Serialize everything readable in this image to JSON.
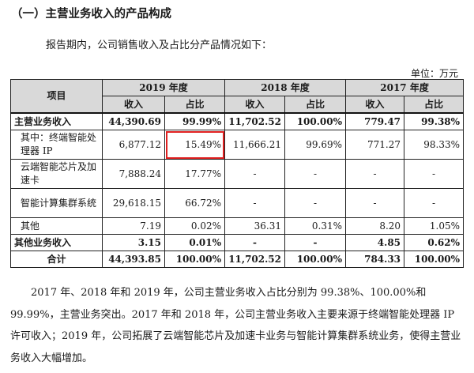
{
  "heading": "（一）主营业务收入的产品构成",
  "intro": "报告期内，公司销售收入及占比分产品情况如下：",
  "unit": "单位：万元",
  "table": {
    "col_item": "项目",
    "years": [
      "2019 年度",
      "2018 年度",
      "2017 年度"
    ],
    "sub_headers": [
      "收入",
      "占比",
      "收入",
      "占比",
      "收入",
      "占比"
    ],
    "rows": [
      {
        "label": "主营业务收入",
        "cells": [
          "44,390.69",
          "99.99%",
          "11,702.52",
          "100.00%",
          "779.47",
          "99.38%"
        ]
      },
      {
        "label": "其中：终端智能处理器 IP",
        "cells": [
          "6,877.12",
          "15.49%",
          "11,666.21",
          "99.69%",
          "771.27",
          "98.33%"
        ]
      },
      {
        "label": "云端智能芯片及加速卡",
        "cells": [
          "7,888.24",
          "17.77%",
          "-",
          "-",
          "-",
          "-"
        ]
      },
      {
        "label": "智能计算集群系统",
        "cells": [
          "29,618.15",
          "66.72%",
          "-",
          "-",
          "-",
          "-"
        ]
      },
      {
        "label": "其他",
        "cells": [
          "7.19",
          "0.02%",
          "36.31",
          "0.31%",
          "8.20",
          "1.05%"
        ]
      },
      {
        "label": "其他业务收入",
        "cells": [
          "3.15",
          "0.01%",
          "-",
          "-",
          "4.85",
          "0.62%"
        ]
      },
      {
        "label": "合计",
        "cells": [
          "44,393.85",
          "100.00%",
          "11,702.52",
          "100.00%",
          "784.33",
          "100.00%"
        ]
      }
    ]
  },
  "paragraph": "2017 年、2018 年和 2019 年，公司主营业务收入占比分别为 99.38%、100.00%和 99.99%，主营业务突出。2017 年和 2018 年，公司主营业务收入主要来源于终端智能处理器 IP 许可收入；2019 年，公司拓展了云端智能芯片及加速卡业务与智能计算集群系统业务，使得主营业务收入大幅增加。"
}
